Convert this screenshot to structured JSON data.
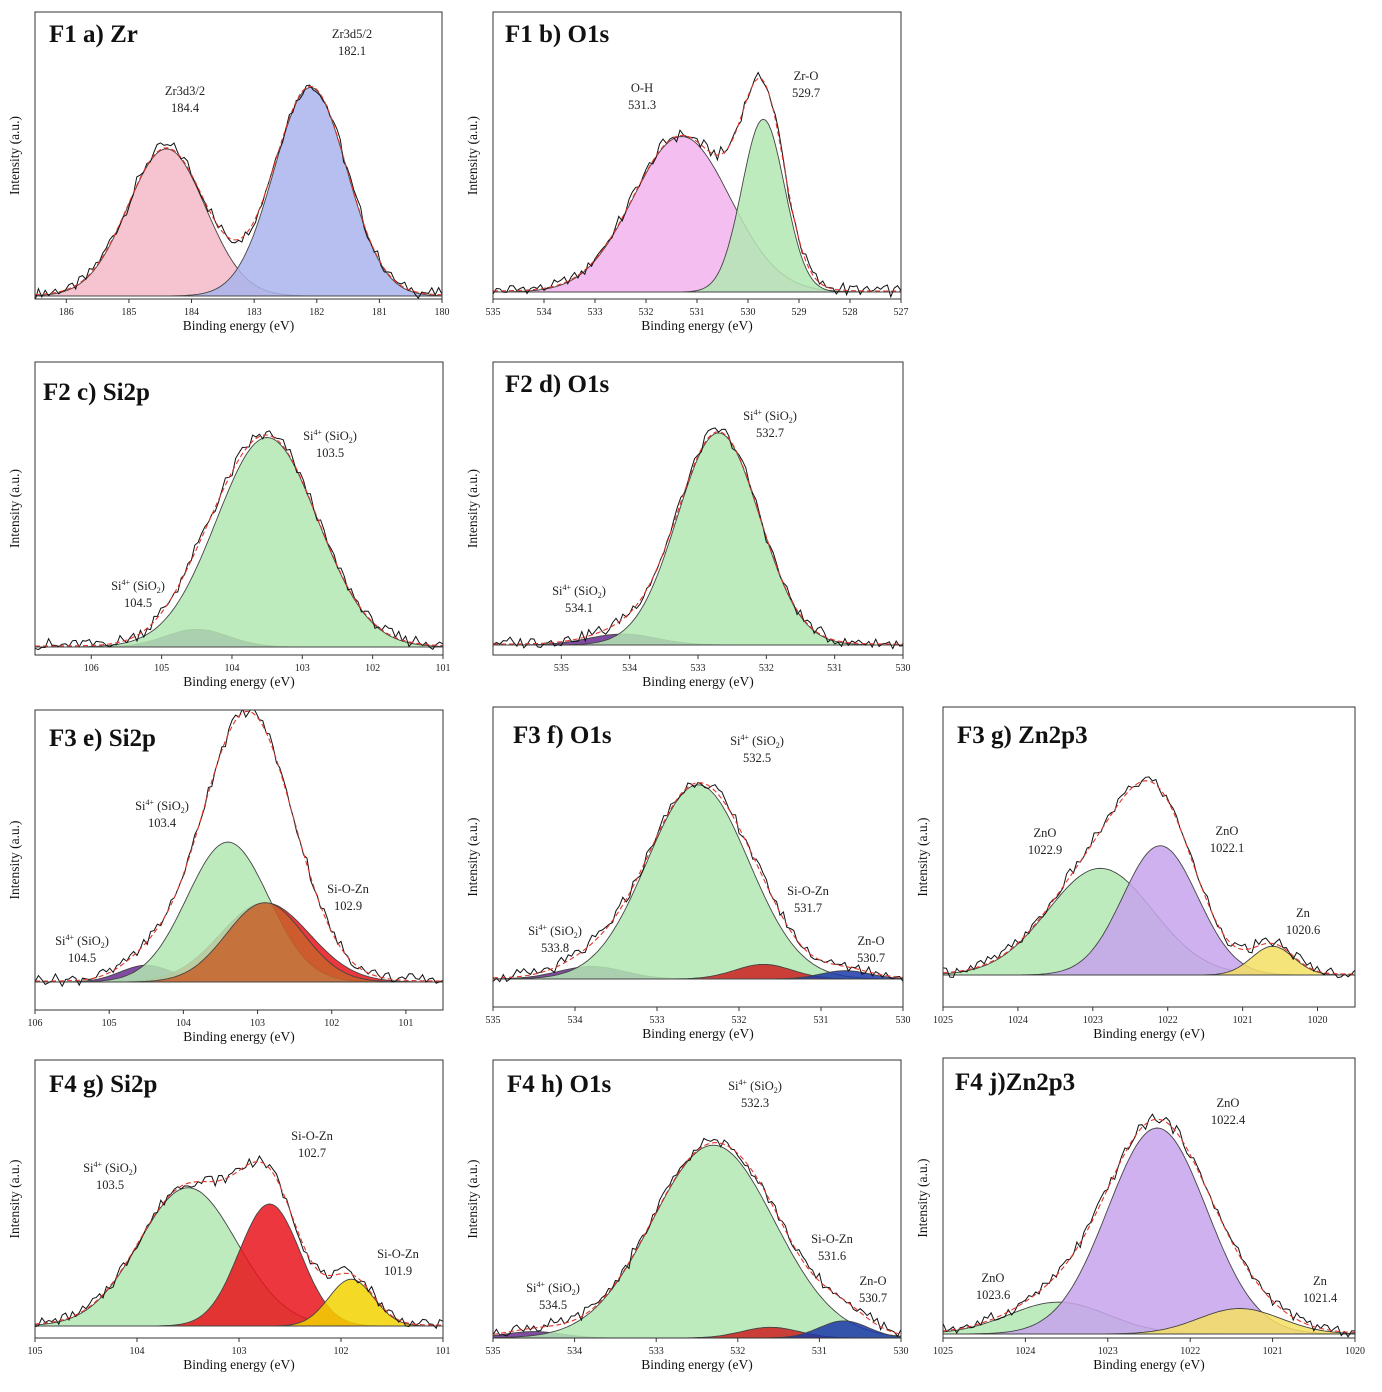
{
  "x_label": "Binding energy (eV)",
  "y_label": "Intensity (a.u.)",
  "colors": {
    "pink": "#f4b8c8",
    "blue": "#a9b4ec",
    "magenta": "#f2b3ef",
    "green": "#b3e8b3",
    "purple": "#6a2c91",
    "brown": "#c8622a",
    "red": "#e8141b",
    "darkred": "#cc2020",
    "navy": "#1c3aa9",
    "lavender": "#c7a3ec",
    "yellow": "#f3df62",
    "gold": "#f2d400",
    "fit": "#e0362a",
    "data": "#111111"
  },
  "chart_data": [
    {
      "type": "area",
      "title": "F1 a) Zr",
      "xlim": [
        186.5,
        180
      ],
      "ticks": [
        186,
        185,
        184,
        183,
        182,
        181,
        180
      ],
      "peaks": [
        {
          "center": 184.4,
          "height": 0.67,
          "width": 0.62,
          "color": "pink",
          "label": [
            "Zr3d3/2",
            "184.4"
          ]
        },
        {
          "center": 182.1,
          "height": 0.95,
          "width": 0.58,
          "color": "blue",
          "label": [
            "Zr3d5/2",
            "182.1"
          ]
        }
      ]
    },
    {
      "type": "area",
      "title": "F1 b) O1s",
      "xlim": [
        535,
        527
      ],
      "ticks": [
        535,
        534,
        533,
        532,
        531,
        530,
        529,
        528,
        527
      ],
      "peaks": [
        {
          "center": 531.3,
          "height": 0.72,
          "width": 0.95,
          "color": "magenta",
          "label": [
            "O-H",
            "531.3"
          ]
        },
        {
          "center": 529.7,
          "height": 0.8,
          "width": 0.42,
          "color": "green",
          "label": [
            "Zr-O",
            "529.7"
          ]
        }
      ]
    },
    {
      "type": "area",
      "title": "F2 c) Si2p",
      "xlim": [
        106.8,
        101
      ],
      "ticks": [
        106,
        105,
        104,
        103,
        102,
        101
      ],
      "peaks": [
        {
          "center": 104.5,
          "height": 0.08,
          "width": 0.45,
          "color": "purple",
          "label": [
            "Si4+ (SiO2)",
            "104.5"
          ]
        },
        {
          "center": 103.5,
          "height": 0.95,
          "width": 0.72,
          "color": "green",
          "label": [
            "Si4+ (SiO2)",
            "103.5"
          ]
        }
      ]
    },
    {
      "type": "area",
      "title": "F2 d) O1s",
      "xlim": [
        536,
        530
      ],
      "ticks": [
        535,
        534,
        533,
        532,
        531,
        530
      ],
      "peaks": [
        {
          "center": 534.1,
          "height": 0.05,
          "width": 0.5,
          "color": "purple",
          "label": [
            "Si4+ (SiO2)",
            "534.1"
          ]
        },
        {
          "center": 532.7,
          "height": 0.97,
          "width": 0.6,
          "color": "green",
          "label": [
            "Si4+ (SiO2)",
            "532.7"
          ]
        }
      ]
    },
    {
      "type": "area",
      "title": "F3 e) Si2p",
      "xlim": [
        106,
        100.5
      ],
      "ticks": [
        106,
        105,
        104,
        103,
        102,
        101
      ],
      "peaks": [
        {
          "center": 104.5,
          "height": 0.08,
          "width": 0.35,
          "color": "purple",
          "label": [
            "Si4+ (SiO2)",
            "104.5"
          ]
        },
        {
          "center": 102.9,
          "height": 0.38,
          "width": 0.6,
          "color": "red",
          "label": [
            "Si-O-Zn",
            "102.9"
          ]
        },
        {
          "center": 103.4,
          "height": 0.67,
          "width": 0.55,
          "color": "green",
          "label": [
            "Si4+ (SiO2)",
            "103.4"
          ]
        },
        {
          "center": 102.9,
          "height": 0.38,
          "width": 0.52,
          "color": "brown",
          "label": null
        }
      ]
    },
    {
      "type": "area",
      "title": "F3 f) O1s",
      "xlim": [
        535,
        530
      ],
      "ticks": [
        535,
        534,
        533,
        532,
        531,
        530
      ],
      "peaks": [
        {
          "center": 533.8,
          "height": 0.06,
          "width": 0.4,
          "color": "purple",
          "label": [
            "Si4+ (SiO2)",
            "533.8"
          ]
        },
        {
          "center": 532.5,
          "height": 0.93,
          "width": 0.62,
          "color": "green",
          "label": [
            "Si4+ (SiO2)",
            "532.5"
          ]
        },
        {
          "center": 531.7,
          "height": 0.07,
          "width": 0.35,
          "color": "darkred",
          "label": [
            "Si-O-Zn",
            "531.7"
          ]
        },
        {
          "center": 530.7,
          "height": 0.04,
          "width": 0.3,
          "color": "navy",
          "label": [
            "Zn-O",
            "530.7"
          ]
        }
      ]
    },
    {
      "type": "area",
      "title": "F3 g) Zn2p3",
      "xlim": [
        1025,
        1019.5
      ],
      "ticks": [
        1025,
        1024,
        1023,
        1022,
        1021,
        1020
      ],
      "peaks": [
        {
          "center": 1022.9,
          "height": 0.52,
          "width": 0.7,
          "color": "green",
          "label": [
            "ZnO",
            "1022.9"
          ]
        },
        {
          "center": 1022.1,
          "height": 0.63,
          "width": 0.5,
          "color": "lavender",
          "label": [
            "ZnO",
            "1022.1"
          ]
        },
        {
          "center": 1020.6,
          "height": 0.14,
          "width": 0.28,
          "color": "yellow",
          "label": [
            "Zn",
            "1020.6"
          ]
        }
      ]
    },
    {
      "type": "area",
      "title": "F4 g) Si2p",
      "xlim": [
        105,
        101
      ],
      "ticks": [
        105,
        104,
        103,
        102,
        101
      ],
      "peaks": [
        {
          "center": 103.5,
          "height": 0.68,
          "width": 0.48,
          "color": "green",
          "label": [
            "Si4+ (SiO2)",
            "103.5"
          ]
        },
        {
          "center": 102.7,
          "height": 0.6,
          "width": 0.3,
          "color": "red",
          "label": [
            "Si-O-Zn",
            "102.7"
          ]
        },
        {
          "center": 101.9,
          "height": 0.23,
          "width": 0.22,
          "color": "gold",
          "label": [
            "Si-O-Zn",
            "101.9"
          ]
        }
      ]
    },
    {
      "type": "area",
      "title": "F4 h) O1s",
      "xlim": [
        535,
        530
      ],
      "ticks": [
        535,
        534,
        533,
        532,
        531,
        530
      ],
      "peaks": [
        {
          "center": 534.5,
          "height": 0.03,
          "width": 0.35,
          "color": "purple",
          "label": [
            "Si4+ (SiO2)",
            "534.5"
          ]
        },
        {
          "center": 532.3,
          "height": 0.9,
          "width": 0.75,
          "color": "green",
          "label": [
            "Si4+ (SiO2)",
            "532.3"
          ]
        },
        {
          "center": 531.6,
          "height": 0.05,
          "width": 0.35,
          "color": "darkred",
          "label": [
            "Si-O-Zn",
            "531.6"
          ]
        },
        {
          "center": 530.7,
          "height": 0.08,
          "width": 0.3,
          "color": "navy",
          "label": [
            "Zn-O",
            "530.7"
          ]
        }
      ]
    },
    {
      "type": "area",
      "title": "F4 j)Zn2p3",
      "xlim": [
        1025,
        1020
      ],
      "ticks": [
        1025,
        1024,
        1023,
        1022,
        1021,
        1020
      ],
      "peaks": [
        {
          "center": 1023.6,
          "height": 0.15,
          "width": 0.6,
          "color": "green",
          "label": [
            "ZnO",
            "1023.6"
          ]
        },
        {
          "center": 1022.4,
          "height": 0.97,
          "width": 0.6,
          "color": "lavender",
          "label": [
            "ZnO",
            "1022.4"
          ]
        },
        {
          "center": 1021.4,
          "height": 0.12,
          "width": 0.5,
          "color": "yellow",
          "label": [
            "Zn",
            "1021.4"
          ]
        }
      ]
    }
  ]
}
